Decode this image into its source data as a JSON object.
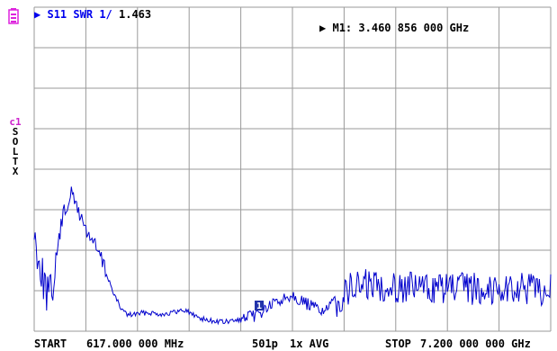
{
  "trace": {
    "marker_symbol": "▶",
    "parameter": "S11",
    "format": "SWR",
    "scale": "1/",
    "value": "1.463"
  },
  "marker": {
    "symbol": "▶",
    "label": "M1:",
    "frequency": "3.460 856 000 GHz",
    "index_label": "1"
  },
  "calibration": {
    "channel": "c1",
    "letters": [
      "S",
      "O",
      "L",
      "T",
      "X"
    ]
  },
  "footer": {
    "start_label": "START",
    "start_value": "617.000 000 MHz",
    "points": "501p",
    "averaging": "1x AVG",
    "stop_label": "STOP",
    "stop_value": "7.200 000 000 GHz"
  },
  "colors": {
    "trace": "#0000cc",
    "grid": "#9a9a9a",
    "text_blue": "#0000ee",
    "text_black": "#000000",
    "calibration": "#cc22cc",
    "battery": "#dd22dd"
  },
  "icons": {
    "battery": "battery-icon",
    "marker": "marker-flag-icon"
  },
  "chart_data": {
    "type": "line",
    "x_start_ghz": 0.617,
    "x_stop_ghz": 7.2,
    "points": 501,
    "marker_frequency_ghz": 3.460856,
    "grid": true,
    "grid_divisions": {
      "x": 10,
      "y": 8
    }
  }
}
